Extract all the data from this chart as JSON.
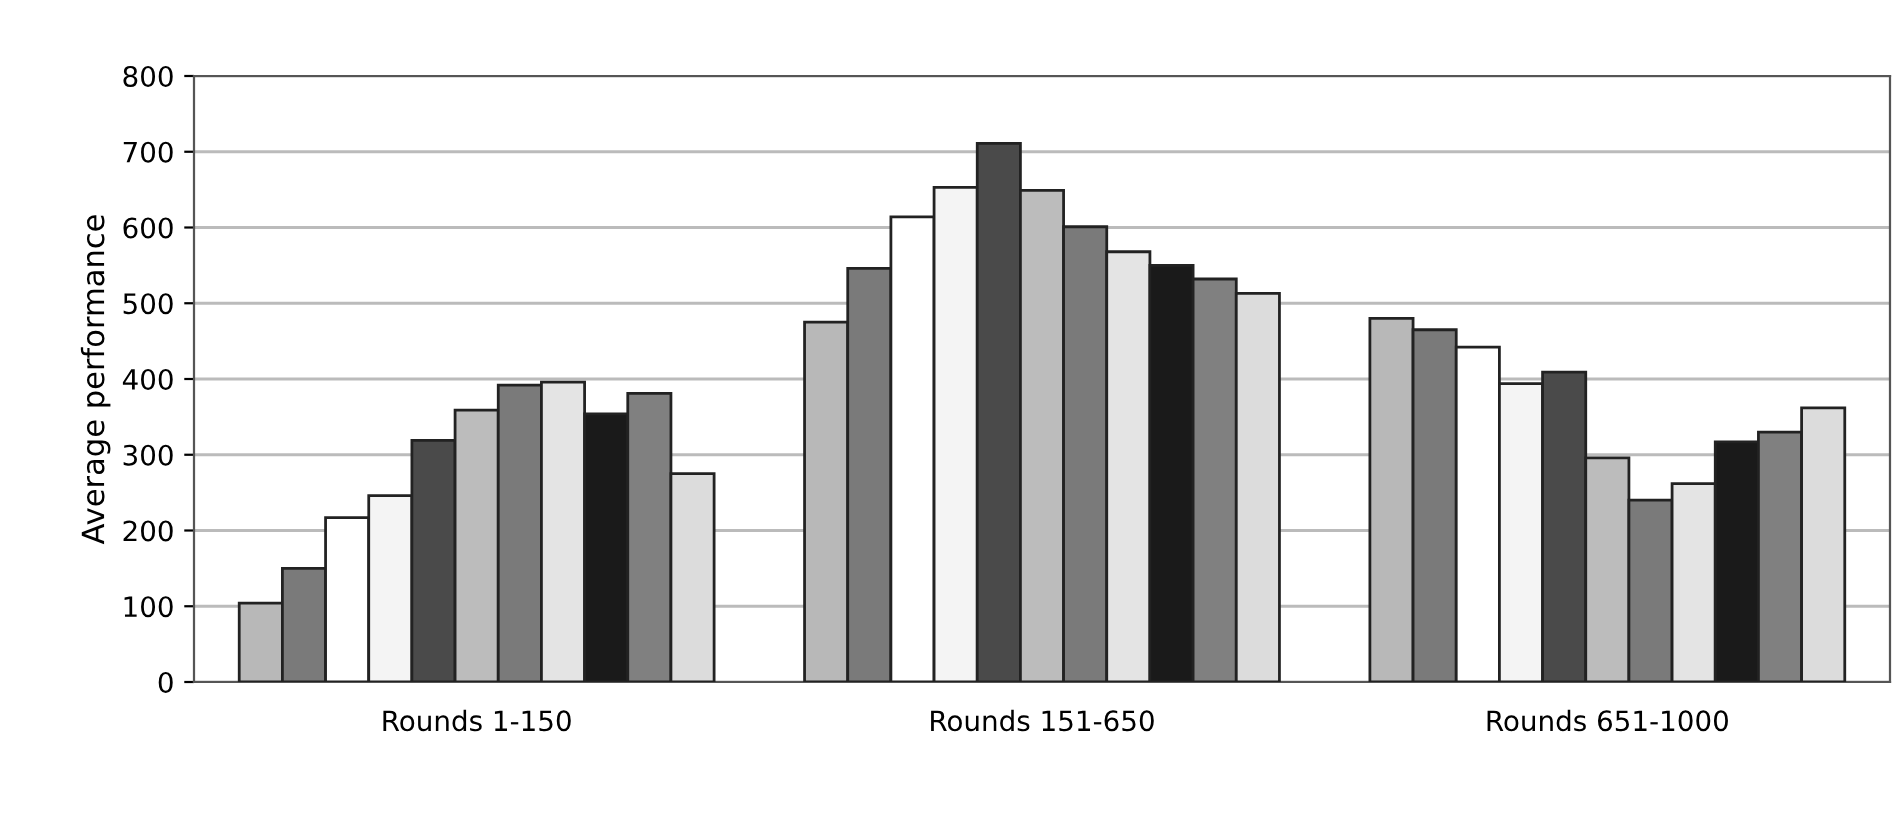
{
  "chart_data": {
    "type": "bar",
    "ylabel": "Average performance",
    "categories": [
      "Rounds 1-150",
      "Rounds 151-650",
      "Rounds 651-1000"
    ],
    "series": [
      {
        "color": "#b8b8b8",
        "values": [
          104,
          475,
          480
        ]
      },
      {
        "color": "#7a7a7a",
        "values": [
          150,
          546,
          465
        ]
      },
      {
        "color": "#ffffff",
        "values": [
          217,
          614,
          442
        ]
      },
      {
        "color": "#f4f4f4",
        "values": [
          246,
          653,
          394
        ]
      },
      {
        "color": "#4a4a4a",
        "values": [
          319,
          711,
          409
        ]
      },
      {
        "color": "#bcbcbc",
        "values": [
          359,
          649,
          296
        ]
      },
      {
        "color": "#7a7a7a",
        "values": [
          392,
          601,
          240
        ]
      },
      {
        "color": "#e4e4e4",
        "values": [
          396,
          568,
          262
        ]
      },
      {
        "color": "#1a1a1a",
        "values": [
          354,
          550,
          317
        ]
      },
      {
        "color": "#808080",
        "values": [
          381,
          532,
          330
        ]
      },
      {
        "color": "#dcdcdc",
        "values": [
          275,
          513,
          362
        ]
      }
    ],
    "ylim": [
      0,
      800
    ],
    "yticks": [
      0,
      100,
      200,
      300,
      400,
      500,
      600,
      700,
      800
    ],
    "grid": "y"
  }
}
